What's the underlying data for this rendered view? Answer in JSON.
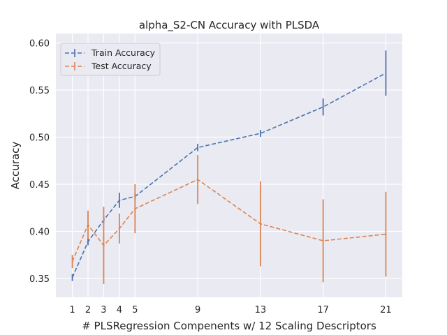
{
  "chart_data": {
    "type": "line",
    "title": "alpha_S2-CN Accuracy with PLSDA",
    "xlabel": "# PLSRegression Compenents w/ 12 Scaling Descriptors",
    "ylabel": "Accuracy",
    "x": [
      1,
      2,
      3,
      4,
      5,
      9,
      13,
      17,
      21
    ],
    "xlim": [
      -0.05,
      22.05
    ],
    "ylim": [
      0.33,
      0.61
    ],
    "yticks": [
      0.35,
      0.4,
      0.45,
      0.5,
      0.55,
      0.6
    ],
    "ytick_labels": [
      "0.35",
      "0.40",
      "0.45",
      "0.50",
      "0.55",
      "0.60"
    ],
    "grid": true,
    "legend_position": "top-left",
    "series": [
      {
        "name": "Train Accuracy",
        "color": "#4c72b0",
        "values": [
          0.351,
          0.389,
          0.412,
          0.433,
          0.437,
          0.489,
          0.504,
          0.532,
          0.568
        ],
        "errors": [
          0.0,
          0.003,
          0.002,
          0.008,
          0.002,
          0.004,
          0.002,
          0.009,
          0.024
        ]
      },
      {
        "name": "Test Accuracy",
        "color": "#dd8452",
        "values": [
          0.368,
          0.407,
          0.385,
          0.403,
          0.424,
          0.455,
          0.408,
          0.39,
          0.397
        ],
        "errors": [
          0.007,
          0.015,
          0.041,
          0.016,
          0.026,
          0.026,
          0.045,
          0.044,
          0.045
        ]
      }
    ]
  }
}
